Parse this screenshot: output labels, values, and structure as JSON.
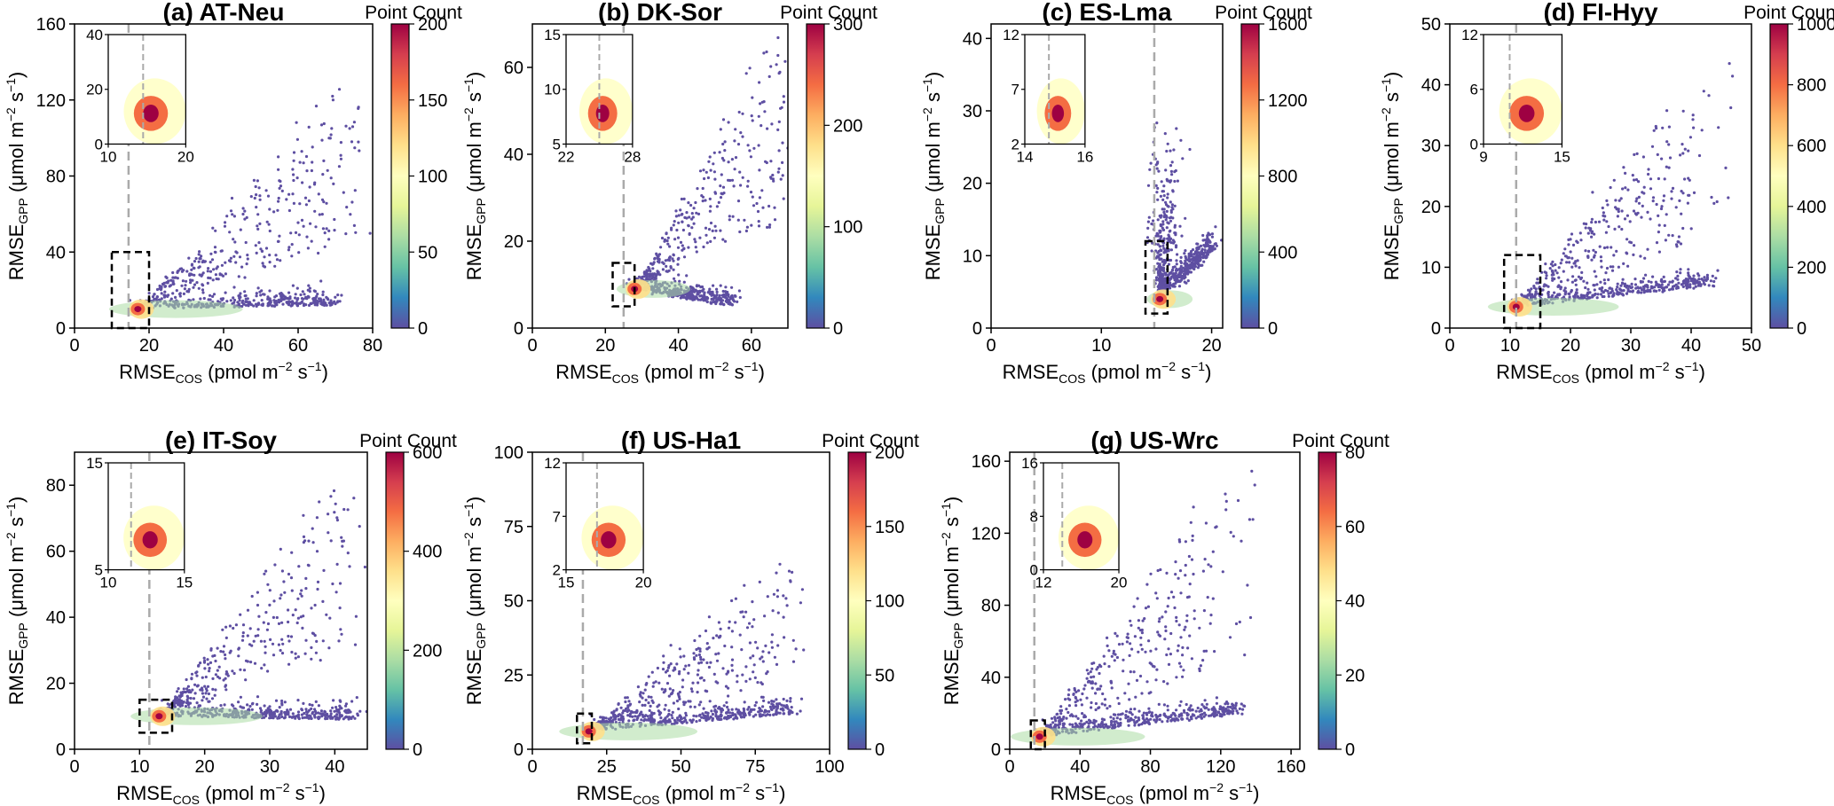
{
  "figure": {
    "colorbar_title": "Point Count",
    "colormap": [
      "#5e4fa2",
      "#3288bd",
      "#66c2a5",
      "#abdda4",
      "#e6f598",
      "#ffffbf",
      "#fee08b",
      "#fdae61",
      "#f46d43",
      "#d53e4f",
      "#9e0142"
    ],
    "scatter_color": "#5e4fa2",
    "guide_color": "#aaaaaa",
    "x_label": {
      "base": "RMSE",
      "sub": "COS",
      "unit_pre": " (pmol m",
      "sup": "−2",
      "unit_mid": " s",
      "sup2": "−1",
      "unit_post": ")"
    },
    "y_label": {
      "base": "RMSE",
      "sub": "GPP",
      "unit_pre": " (μmol m",
      "sup": "−2",
      "unit_mid": " s",
      "sup2": "−1",
      "unit_post": ")"
    }
  },
  "chart_data": [
    {
      "type": "scatter",
      "title": "(a) AT-Neu",
      "xlim": [
        0,
        80
      ],
      "ylim": [
        0,
        160
      ],
      "xticks": [
        0,
        20,
        40,
        60,
        80
      ],
      "yticks": [
        0,
        40,
        80,
        120,
        160
      ],
      "threshold_x": 14.5,
      "box": {
        "x": [
          10,
          20
        ],
        "y": [
          0,
          40
        ]
      },
      "cbar_max": 200,
      "cbar_ticks": [
        0,
        50,
        100,
        150,
        200
      ],
      "inset": {
        "xlim": [
          10,
          20
        ],
        "ylim": [
          0,
          40
        ],
        "xticks": [
          10,
          20
        ],
        "yticks": [
          0,
          20,
          40
        ]
      },
      "cloud": {
        "hot": [
          17,
          10
        ],
        "trail_end": [
          70,
          12
        ],
        "diag_end": [
          75,
          130
        ],
        "spread": 12
      }
    },
    {
      "type": "scatter",
      "title": "(b) DK-Sor",
      "xlim": [
        0,
        70
      ],
      "ylim": [
        0,
        70
      ],
      "xticks": [
        0,
        20,
        40,
        60
      ],
      "yticks": [
        0,
        20,
        40,
        60
      ],
      "threshold_x": 25,
      "box": {
        "x": [
          22,
          28
        ],
        "y": [
          5,
          15
        ]
      },
      "cbar_max": 300,
      "cbar_ticks": [
        0,
        100,
        200,
        300
      ],
      "inset": {
        "xlim": [
          22,
          28
        ],
        "ylim": [
          5,
          15
        ],
        "xticks": [
          22,
          28
        ],
        "yticks": [
          5,
          10,
          15
        ]
      },
      "cloud": {
        "hot": [
          28,
          9
        ],
        "trail_end": [
          55,
          5
        ],
        "diag_end": [
          70,
          70
        ],
        "spread": 8
      }
    },
    {
      "type": "scatter",
      "title": "(c) ES-Lma",
      "xlim": [
        0,
        21
      ],
      "ylim": [
        0,
        42
      ],
      "xticks": [
        0,
        10,
        20
      ],
      "yticks": [
        0,
        10,
        20,
        30,
        40
      ],
      "threshold_x": 14.8,
      "box": {
        "x": [
          14,
          16
        ],
        "y": [
          2,
          12
        ]
      },
      "cbar_max": 1600,
      "cbar_ticks": [
        0,
        400,
        800,
        1200,
        1600
      ],
      "inset": {
        "xlim": [
          14,
          16
        ],
        "ylim": [
          2,
          12
        ],
        "xticks": [
          14,
          16
        ],
        "yticks": [
          2,
          7,
          12
        ]
      },
      "cloud": {
        "hot": [
          15.3,
          4
        ],
        "trail_end": [
          20,
          11
        ],
        "diag_end": [
          16,
          30
        ],
        "spread": 3
      }
    },
    {
      "type": "scatter",
      "title": "(d) FI-Hyy",
      "xlim": [
        0,
        50
      ],
      "ylim": [
        0,
        50
      ],
      "xticks": [
        0,
        10,
        20,
        30,
        40,
        50
      ],
      "yticks": [
        0,
        10,
        20,
        30,
        40,
        50
      ],
      "threshold_x": 11,
      "box": {
        "x": [
          9,
          15
        ],
        "y": [
          0,
          12
        ]
      },
      "cbar_max": 1000,
      "cbar_ticks": [
        0,
        200,
        400,
        600,
        800,
        1000
      ],
      "inset": {
        "xlim": [
          9,
          15
        ],
        "ylim": [
          0,
          12
        ],
        "xticks": [
          9,
          15
        ],
        "yticks": [
          0,
          6,
          12
        ]
      },
      "cloud": {
        "hot": [
          11,
          3.5
        ],
        "trail_end": [
          43,
          7
        ],
        "diag_end": [
          44,
          45
        ],
        "spread": 5
      }
    },
    {
      "type": "scatter",
      "title": "(e) IT-Soy",
      "xlim": [
        0,
        45
      ],
      "ylim": [
        0,
        90
      ],
      "xticks": [
        0,
        10,
        20,
        30,
        40
      ],
      "yticks": [
        0,
        20,
        40,
        60,
        80
      ],
      "threshold_x": 11.5,
      "box": {
        "x": [
          10,
          15
        ],
        "y": [
          5,
          15
        ]
      },
      "cbar_max": 600,
      "cbar_ticks": [
        0,
        200,
        400,
        600
      ],
      "inset": {
        "xlim": [
          10,
          15
        ],
        "ylim": [
          5,
          15
        ],
        "xticks": [
          10,
          15
        ],
        "yticks": [
          5,
          15
        ]
      },
      "cloud": {
        "hot": [
          13,
          10
        ],
        "trail_end": [
          43,
          9
        ],
        "diag_end": [
          42,
          83
        ],
        "spread": 6
      }
    },
    {
      "type": "scatter",
      "title": "(f) US-Ha1",
      "xlim": [
        0,
        100
      ],
      "ylim": [
        0,
        100
      ],
      "xticks": [
        0,
        25,
        50,
        75,
        100
      ],
      "yticks": [
        0,
        25,
        50,
        75,
        100
      ],
      "threshold_x": 17,
      "box": {
        "x": [
          15,
          20
        ],
        "y": [
          2,
          12
        ]
      },
      "cbar_max": 200,
      "cbar_ticks": [
        0,
        50,
        100,
        150,
        200
      ],
      "inset": {
        "xlim": [
          15,
          20
        ],
        "ylim": [
          2,
          12
        ],
        "xticks": [
          15,
          20
        ],
        "yticks": [
          2,
          7,
          12
        ]
      },
      "cloud": {
        "hot": [
          19,
          6
        ],
        "trail_end": [
          88,
          12
        ],
        "diag_end": [
          90,
          70
        ],
        "spread": 10
      }
    },
    {
      "type": "scatter",
      "title": "(g) US-Wrc",
      "xlim": [
        0,
        165
      ],
      "ylim": [
        0,
        165
      ],
      "xticks": [
        0,
        40,
        80,
        120,
        160
      ],
      "yticks": [
        0,
        40,
        80,
        120,
        160
      ],
      "threshold_x": 14,
      "box": {
        "x": [
          12,
          20
        ],
        "y": [
          0,
          16
        ]
      },
      "cbar_max": 80,
      "cbar_ticks": [
        0,
        20,
        40,
        60,
        80
      ],
      "inset": {
        "xlim": [
          12,
          20
        ],
        "ylim": [
          0,
          16
        ],
        "xticks": [
          12,
          20
        ],
        "yticks": [
          0,
          8,
          16
        ]
      },
      "cloud": {
        "hot": [
          17,
          7
        ],
        "trail_end": [
          130,
          20
        ],
        "diag_end": [
          130,
          160
        ],
        "spread": 20
      }
    }
  ]
}
